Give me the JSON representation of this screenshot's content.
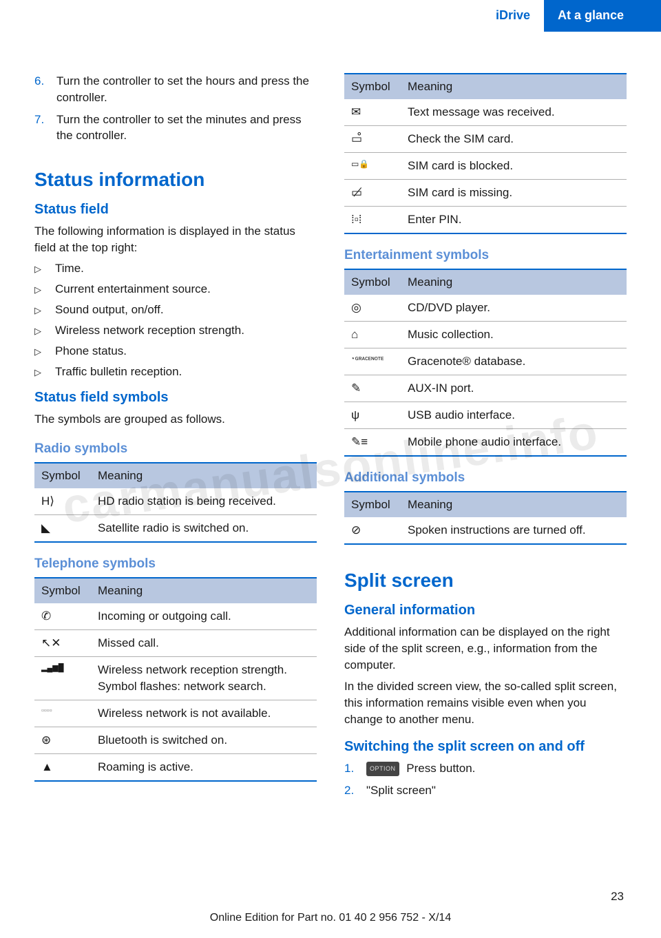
{
  "header": {
    "left": "iDrive",
    "right": "At a glance"
  },
  "leftCol": {
    "steps": [
      {
        "n": "6.",
        "t": "Turn the controller to set the hours and press the controller."
      },
      {
        "n": "7.",
        "t": "Turn the controller to set the minutes and press the controller."
      }
    ],
    "h1_status": "Status information",
    "h2_field": "Status field",
    "p_field": "The following information is displayed in the status field at the top right:",
    "bullets": [
      "Time.",
      "Current entertainment source.",
      "Sound output, on/off.",
      "Wireless network reception strength.",
      "Phone status.",
      "Traffic bulletin reception."
    ],
    "h2_symbols": "Status field symbols",
    "p_symbols": "The symbols are grouped as follows.",
    "h3_radio": "Radio symbols",
    "col_sym": "Symbol",
    "col_mean": "Meaning",
    "radio_rows": [
      {
        "s": "H⟩",
        "m": "HD radio station is being received."
      },
      {
        "s": "◣",
        "m": "Satellite radio is switched on."
      }
    ],
    "h3_tel": "Telephone symbols",
    "tel_rows": [
      {
        "s": "✆",
        "m": "Incoming or outgoing call."
      },
      {
        "s": "↖✕",
        "m": "Missed call."
      },
      {
        "s": "▂▄▆█",
        "m": "Wireless network reception strength.",
        "m2": "Symbol flashes: network search."
      },
      {
        "s": "▫▫▫▫",
        "m": "Wireless network is not available."
      },
      {
        "s": "⊛",
        "m": "Bluetooth is switched on."
      },
      {
        "s": "▲",
        "m": "Roaming is active."
      }
    ]
  },
  "rightCol": {
    "col_sym": "Symbol",
    "col_mean": "Meaning",
    "tel_cont": [
      {
        "s": "✉",
        "m": "Text message was received."
      },
      {
        "s": "▭̊",
        "m": "Check the SIM card."
      },
      {
        "s": "▭🔒",
        "m": "SIM card is blocked."
      },
      {
        "s": "▭̸",
        "m": "SIM card is missing."
      },
      {
        "s": "⁞▫⁞",
        "m": "Enter PIN."
      }
    ],
    "h3_ent": "Entertainment symbols",
    "ent_rows": [
      {
        "s": "◎",
        "m": "CD/DVD player."
      },
      {
        "s": "⌂",
        "m": "Music collection."
      },
      {
        "s": "⋆ɢʀᴀᴄᴇɴᴏᴛᴇ",
        "m": "Gracenote® database."
      },
      {
        "s": "✎",
        "m": "AUX-IN port."
      },
      {
        "s": "ψ",
        "m": "USB audio interface."
      },
      {
        "s": "✎≡",
        "m": "Mobile phone audio interface."
      }
    ],
    "h3_add": "Additional symbols",
    "add_rows": [
      {
        "s": "⊘",
        "m": "Spoken instructions are turned off."
      }
    ],
    "h1_split": "Split screen",
    "h2_general": "General information",
    "p_general1": "Additional information can be displayed on the right side of the split screen, e.g., information from the computer.",
    "p_general2": "In the divided screen view, the so-called split screen, this information remains visible even when you change to another menu.",
    "h2_switch": "Switching the split screen on and off",
    "switch_steps": [
      {
        "n": "1.",
        "btn": "OPTION",
        "t": " Press button."
      },
      {
        "n": "2.",
        "t": "\"Split screen\""
      }
    ]
  },
  "pagenum": "23",
  "footer": "Online Edition for Part no. 01 40 2 956 752 - X/14",
  "watermark": "carmanualsonline.info"
}
